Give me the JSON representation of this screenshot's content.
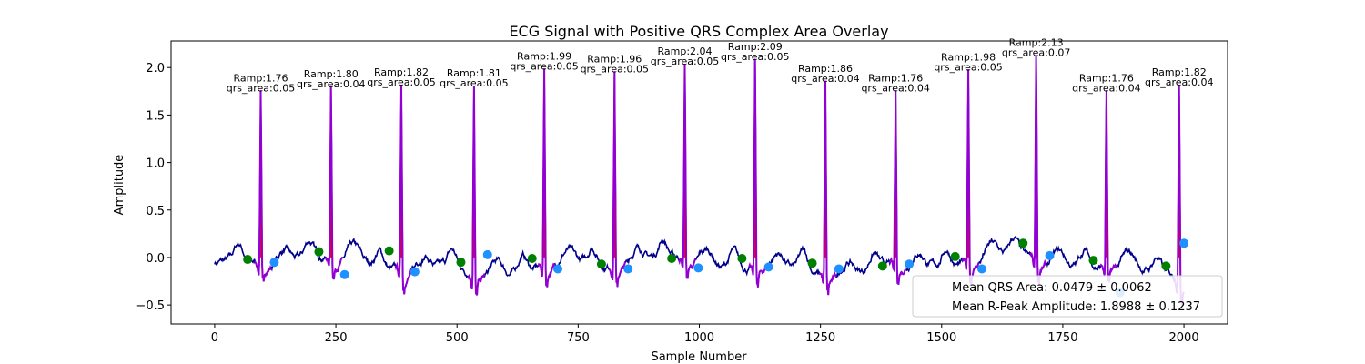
{
  "chart_data": {
    "type": "line",
    "title": "ECG Signal with Positive QRS Complex Area Overlay",
    "xlabel": "Sample Number",
    "ylabel": "Amplitude",
    "xlim": [
      -90,
      2090
    ],
    "ylim": [
      -0.7,
      2.28
    ],
    "xticks": [
      0,
      250,
      500,
      750,
      1000,
      1250,
      1500,
      1750,
      2000
    ],
    "yticks": [
      -0.5,
      0.0,
      0.5,
      1.0,
      1.5,
      2.0
    ],
    "grid": false,
    "colors": {
      "ecg": "#00008b",
      "qrs": "#9400d3",
      "area": "#ff0000",
      "q_marker": "#008000",
      "s_marker": "#1e90ff"
    },
    "beats": [
      {
        "r": 95,
        "ramp": 1.76,
        "area": 0.05,
        "q": [
          68,
          -0.02
        ],
        "s": [
          123,
          -0.05
        ]
      },
      {
        "r": 240,
        "ramp": 1.8,
        "area": 0.04,
        "q": [
          215,
          0.06
        ],
        "s": [
          268,
          -0.18
        ]
      },
      {
        "r": 385,
        "ramp": 1.82,
        "area": 0.05,
        "q": [
          360,
          0.07
        ],
        "s": [
          413,
          -0.15
        ]
      },
      {
        "r": 535,
        "ramp": 1.81,
        "area": 0.05,
        "q": [
          508,
          -0.05
        ],
        "s": [
          563,
          0.03
        ]
      },
      {
        "r": 680,
        "ramp": 1.99,
        "area": 0.05,
        "q": [
          655,
          -0.01
        ],
        "s": [
          708,
          -0.12
        ]
      },
      {
        "r": 825,
        "ramp": 1.96,
        "area": 0.05,
        "q": [
          798,
          -0.07
        ],
        "s": [
          853,
          -0.12
        ]
      },
      {
        "r": 970,
        "ramp": 2.04,
        "area": 0.05,
        "q": [
          943,
          -0.01
        ],
        "s": [
          998,
          -0.11
        ]
      },
      {
        "r": 1115,
        "ramp": 2.09,
        "area": 0.05,
        "q": [
          1088,
          -0.01
        ],
        "s": [
          1143,
          -0.1
        ]
      },
      {
        "r": 1260,
        "ramp": 1.86,
        "area": 0.04,
        "q": [
          1233,
          -0.06
        ],
        "s": [
          1288,
          -0.12
        ]
      },
      {
        "r": 1405,
        "ramp": 1.76,
        "area": 0.04,
        "q": [
          1378,
          -0.09
        ],
        "s": [
          1433,
          -0.07
        ]
      },
      {
        "r": 1555,
        "ramp": 1.98,
        "area": 0.05,
        "q": [
          1528,
          0.01
        ],
        "s": [
          1583,
          -0.12
        ]
      },
      {
        "r": 1695,
        "ramp": 2.13,
        "area": 0.07,
        "q": [
          1668,
          0.15
        ],
        "s": [
          1723,
          0.02
        ]
      },
      {
        "r": 1840,
        "ramp": 1.76,
        "area": 0.04,
        "q": [
          1813,
          -0.03
        ],
        "s": [
          1868,
          -0.37
        ]
      },
      {
        "r": 1990,
        "ramp": 1.82,
        "area": 0.04,
        "q": [
          1963,
          -0.09
        ],
        "s": [
          2000,
          0.15
        ]
      }
    ],
    "annotation_templates": {
      "ramp_prefix": "Ramp:",
      "area_prefix": "qrs_area:"
    },
    "legend": {
      "location": "lower right",
      "entries": [
        "Mean QRS Area: 0.0479 ± 0.0062",
        "Mean R-Peak Amplitude: 1.8988 ± 0.1237"
      ]
    }
  }
}
